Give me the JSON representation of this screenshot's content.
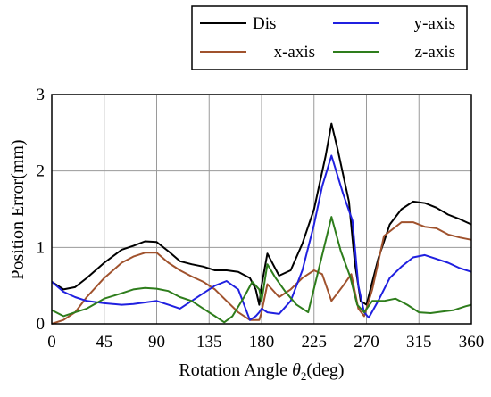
{
  "chart_data": {
    "type": "line",
    "xlabel_prefix": "Rotation Angle ",
    "xlabel_symbol": "θ",
    "xlabel_subscript": "2",
    "xlabel_suffix": "(deg)",
    "ylabel": "Position Error(mm)",
    "xlim": [
      0,
      360
    ],
    "ylim": [
      0,
      3
    ],
    "xticks": [
      0,
      45,
      90,
      135,
      180,
      225,
      270,
      315,
      360
    ],
    "yticks": [
      0,
      1,
      2,
      3
    ],
    "grid": true,
    "legend_position": "top-right, above plot",
    "series": [
      {
        "name": "Dis",
        "color": "#000000",
        "points": [
          [
            0,
            0.55
          ],
          [
            10,
            0.45
          ],
          [
            20,
            0.48
          ],
          [
            30,
            0.6
          ],
          [
            45,
            0.8
          ],
          [
            60,
            0.97
          ],
          [
            70,
            1.02
          ],
          [
            80,
            1.08
          ],
          [
            90,
            1.07
          ],
          [
            100,
            0.95
          ],
          [
            110,
            0.82
          ],
          [
            120,
            0.78
          ],
          [
            130,
            0.75
          ],
          [
            140,
            0.7
          ],
          [
            150,
            0.7
          ],
          [
            160,
            0.68
          ],
          [
            170,
            0.6
          ],
          [
            175,
            0.45
          ],
          [
            178,
            0.25
          ],
          [
            180,
            0.5
          ],
          [
            185,
            0.92
          ],
          [
            195,
            0.63
          ],
          [
            205,
            0.7
          ],
          [
            215,
            1.05
          ],
          [
            225,
            1.5
          ],
          [
            235,
            2.2
          ],
          [
            240,
            2.62
          ],
          [
            245,
            2.3
          ],
          [
            255,
            1.6
          ],
          [
            260,
            0.8
          ],
          [
            265,
            0.3
          ],
          [
            270,
            0.25
          ],
          [
            280,
            0.85
          ],
          [
            290,
            1.3
          ],
          [
            300,
            1.5
          ],
          [
            310,
            1.6
          ],
          [
            320,
            1.58
          ],
          [
            330,
            1.52
          ],
          [
            340,
            1.43
          ],
          [
            350,
            1.37
          ],
          [
            360,
            1.3
          ]
        ]
      },
      {
        "name": "x-axis",
        "color": "#a0522d",
        "points": [
          [
            0,
            0.0
          ],
          [
            10,
            0.05
          ],
          [
            20,
            0.15
          ],
          [
            30,
            0.35
          ],
          [
            45,
            0.6
          ],
          [
            60,
            0.8
          ],
          [
            70,
            0.88
          ],
          [
            80,
            0.93
          ],
          [
            90,
            0.93
          ],
          [
            100,
            0.8
          ],
          [
            110,
            0.7
          ],
          [
            120,
            0.62
          ],
          [
            130,
            0.55
          ],
          [
            140,
            0.45
          ],
          [
            150,
            0.3
          ],
          [
            160,
            0.15
          ],
          [
            170,
            0.05
          ],
          [
            175,
            0.05
          ],
          [
            178,
            0.05
          ],
          [
            180,
            0.15
          ],
          [
            185,
            0.52
          ],
          [
            195,
            0.35
          ],
          [
            205,
            0.45
          ],
          [
            215,
            0.6
          ],
          [
            225,
            0.7
          ],
          [
            232,
            0.65
          ],
          [
            240,
            0.3
          ],
          [
            250,
            0.5
          ],
          [
            257,
            0.65
          ],
          [
            263,
            0.2
          ],
          [
            268,
            0.1
          ],
          [
            275,
            0.45
          ],
          [
            285,
            1.15
          ],
          [
            300,
            1.33
          ],
          [
            310,
            1.33
          ],
          [
            320,
            1.27
          ],
          [
            330,
            1.25
          ],
          [
            340,
            1.17
          ],
          [
            350,
            1.13
          ],
          [
            360,
            1.1
          ]
        ]
      },
      {
        "name": "y-axis",
        "color": "#2020e0",
        "points": [
          [
            0,
            0.55
          ],
          [
            10,
            0.42
          ],
          [
            20,
            0.35
          ],
          [
            30,
            0.3
          ],
          [
            45,
            0.27
          ],
          [
            60,
            0.25
          ],
          [
            70,
            0.26
          ],
          [
            80,
            0.28
          ],
          [
            90,
            0.3
          ],
          [
            100,
            0.25
          ],
          [
            110,
            0.2
          ],
          [
            120,
            0.3
          ],
          [
            130,
            0.4
          ],
          [
            140,
            0.5
          ],
          [
            150,
            0.56
          ],
          [
            160,
            0.45
          ],
          [
            170,
            0.05
          ],
          [
            175,
            0.1
          ],
          [
            178,
            0.15
          ],
          [
            180,
            0.2
          ],
          [
            185,
            0.15
          ],
          [
            195,
            0.13
          ],
          [
            205,
            0.3
          ],
          [
            215,
            0.7
          ],
          [
            225,
            1.3
          ],
          [
            232,
            1.8
          ],
          [
            240,
            2.2
          ],
          [
            250,
            1.7
          ],
          [
            258,
            1.35
          ],
          [
            263,
            0.5
          ],
          [
            268,
            0.15
          ],
          [
            272,
            0.08
          ],
          [
            280,
            0.3
          ],
          [
            290,
            0.6
          ],
          [
            300,
            0.75
          ],
          [
            310,
            0.87
          ],
          [
            320,
            0.9
          ],
          [
            330,
            0.85
          ],
          [
            340,
            0.8
          ],
          [
            350,
            0.73
          ],
          [
            360,
            0.68
          ]
        ]
      },
      {
        "name": "z-axis",
        "color": "#2e7d1c",
        "points": [
          [
            0,
            0.18
          ],
          [
            10,
            0.1
          ],
          [
            20,
            0.15
          ],
          [
            30,
            0.2
          ],
          [
            45,
            0.33
          ],
          [
            60,
            0.4
          ],
          [
            70,
            0.45
          ],
          [
            80,
            0.47
          ],
          [
            90,
            0.46
          ],
          [
            100,
            0.43
          ],
          [
            110,
            0.35
          ],
          [
            120,
            0.3
          ],
          [
            130,
            0.2
          ],
          [
            140,
            0.1
          ],
          [
            148,
            0.02
          ],
          [
            155,
            0.1
          ],
          [
            165,
            0.35
          ],
          [
            172,
            0.55
          ],
          [
            178,
            0.45
          ],
          [
            180,
            0.3
          ],
          [
            185,
            0.78
          ],
          [
            192,
            0.6
          ],
          [
            200,
            0.43
          ],
          [
            210,
            0.25
          ],
          [
            220,
            0.15
          ],
          [
            232,
            0.9
          ],
          [
            240,
            1.4
          ],
          [
            248,
            0.95
          ],
          [
            256,
            0.62
          ],
          [
            262,
            0.25
          ],
          [
            268,
            0.15
          ],
          [
            275,
            0.3
          ],
          [
            285,
            0.3
          ],
          [
            295,
            0.33
          ],
          [
            305,
            0.25
          ],
          [
            315,
            0.15
          ],
          [
            325,
            0.14
          ],
          [
            335,
            0.16
          ],
          [
            345,
            0.18
          ],
          [
            355,
            0.23
          ],
          [
            360,
            0.25
          ]
        ]
      }
    ]
  }
}
